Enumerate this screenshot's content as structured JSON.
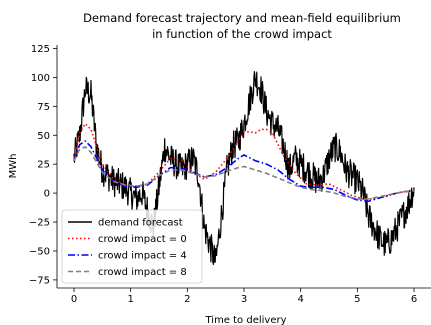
{
  "chart_data": {
    "type": "line",
    "title": "Demand forecast trajectory and mean-field equilibrium",
    "subtitle": "in function of the crowd impact",
    "xlabel": "Time to delivery",
    "ylabel": "MWh",
    "xlim": [
      -0.3,
      6.3
    ],
    "ylim": [
      -82,
      128
    ],
    "xticks": [
      0,
      1,
      2,
      3,
      4,
      5,
      6
    ],
    "yticks": [
      -75,
      -50,
      -25,
      0,
      25,
      50,
      75,
      100,
      125
    ],
    "grid": false,
    "legend_position": "lower-left",
    "series": [
      {
        "name": "demand forecast",
        "color": "#000000",
        "style": "solid",
        "noisy": true,
        "x": [
          0,
          0.1,
          0.2,
          0.3,
          0.4,
          0.5,
          0.6,
          0.7,
          0.8,
          0.9,
          1.0,
          1.1,
          1.2,
          1.3,
          1.4,
          1.5,
          1.6,
          1.7,
          1.8,
          1.9,
          2.0,
          2.1,
          2.2,
          2.3,
          2.4,
          2.5,
          2.6,
          2.7,
          2.8,
          2.9,
          3.0,
          3.1,
          3.2,
          3.3,
          3.4,
          3.5,
          3.6,
          3.7,
          3.8,
          3.9,
          4.0,
          4.1,
          4.2,
          4.3,
          4.4,
          4.5,
          4.6,
          4.7,
          4.8,
          4.9,
          5.0,
          5.1,
          5.2,
          5.3,
          5.4,
          5.5,
          5.6,
          5.7,
          5.8,
          5.9,
          6.0
        ],
        "values": [
          30,
          50,
          90,
          85,
          40,
          20,
          15,
          10,
          8,
          5,
          0,
          -5,
          0,
          -15,
          -30,
          5,
          40,
          30,
          25,
          20,
          25,
          30,
          15,
          -30,
          -45,
          -60,
          -20,
          20,
          40,
          45,
          60,
          80,
          100,
          90,
          70,
          60,
          55,
          40,
          20,
          30,
          25,
          20,
          15,
          10,
          15,
          30,
          40,
          35,
          20,
          15,
          10,
          0,
          -20,
          -30,
          -40,
          -45,
          -40,
          -30,
          -20,
          -10,
          5
        ]
      },
      {
        "name": "crowd impact = 0",
        "color": "#ff0000",
        "style": "dotted",
        "x": [
          0,
          0.1,
          0.2,
          0.3,
          0.5,
          0.7,
          0.9,
          1.1,
          1.3,
          1.5,
          1.7,
          1.9,
          2.1,
          2.3,
          2.5,
          2.7,
          2.9,
          3.0,
          3.1,
          3.2,
          3.3,
          3.4,
          3.5,
          3.6,
          3.7,
          3.9,
          4.1,
          4.3,
          4.5,
          4.7,
          4.9,
          5.1,
          5.3,
          5.5,
          5.7,
          5.9,
          6.0
        ],
        "values": [
          28,
          52,
          60,
          55,
          25,
          12,
          7,
          5,
          8,
          18,
          30,
          28,
          18,
          12,
          18,
          30,
          45,
          53,
          53,
          52,
          55,
          55,
          52,
          42,
          32,
          18,
          8,
          7,
          8,
          3,
          -2,
          -5,
          -5,
          -3,
          0,
          2,
          3
        ]
      },
      {
        "name": "crowd impact = 4",
        "color": "#0000ff",
        "style": "dashdot",
        "x": [
          0,
          0.1,
          0.2,
          0.3,
          0.5,
          0.7,
          0.9,
          1.1,
          1.3,
          1.5,
          1.7,
          1.9,
          2.1,
          2.3,
          2.5,
          2.7,
          2.9,
          3.0,
          3.2,
          3.4,
          3.6,
          3.8,
          4.0,
          4.2,
          4.4,
          4.6,
          4.8,
          5.0,
          5.2,
          5.4,
          5.6,
          5.8,
          6.0
        ],
        "values": [
          28,
          42,
          45,
          40,
          20,
          10,
          6,
          5,
          7,
          15,
          22,
          22,
          18,
          14,
          16,
          22,
          30,
          33,
          28,
          25,
          20,
          12,
          6,
          5,
          5,
          3,
          -2,
          -6,
          -7,
          -4,
          -1,
          1,
          2
        ]
      },
      {
        "name": "crowd impact = 8",
        "color": "#808080",
        "style": "dashed",
        "x": [
          0,
          0.1,
          0.2,
          0.3,
          0.5,
          0.7,
          0.9,
          1.1,
          1.3,
          1.5,
          1.7,
          1.9,
          2.1,
          2.3,
          2.5,
          2.7,
          2.9,
          3.0,
          3.2,
          3.4,
          3.6,
          3.8,
          4.0,
          4.2,
          4.4,
          4.6,
          4.8,
          5.0,
          5.2,
          5.4,
          5.6,
          5.8,
          6.0
        ],
        "values": [
          28,
          38,
          40,
          35,
          18,
          10,
          7,
          6,
          8,
          15,
          20,
          20,
          17,
          14,
          15,
          19,
          22,
          23,
          20,
          17,
          13,
          9,
          5,
          3,
          2,
          0,
          -3,
          -5,
          -5,
          -3,
          -1,
          1,
          2
        ]
      }
    ]
  }
}
